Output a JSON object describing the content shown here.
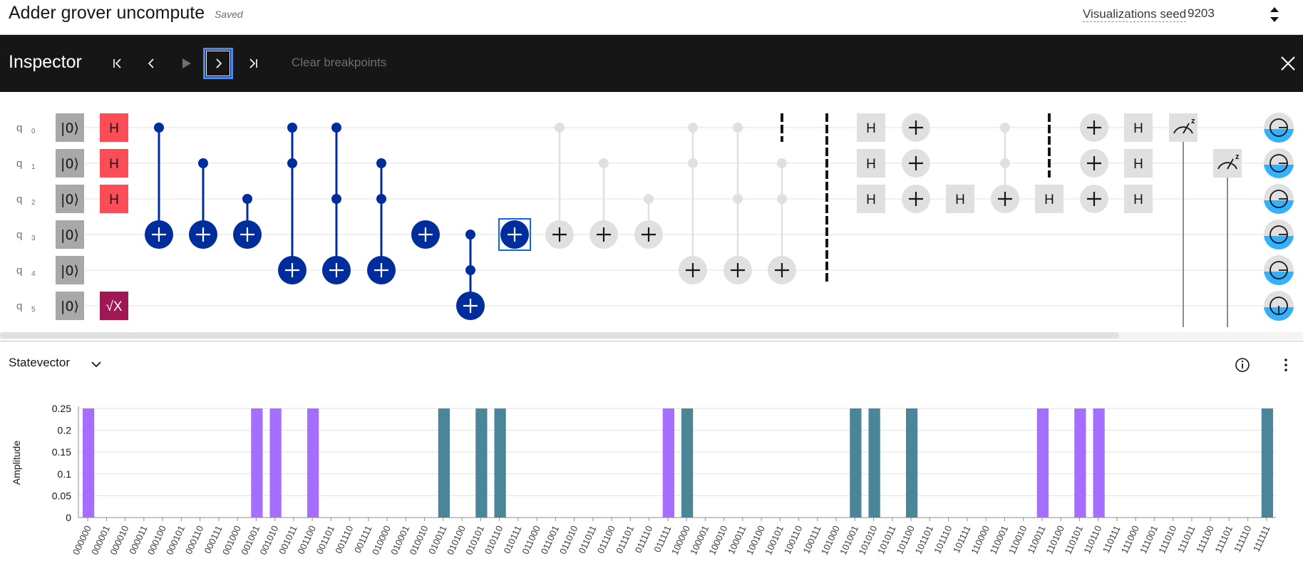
{
  "header": {
    "title": "Adder grover uncompute",
    "saved": "Saved",
    "seed_label": "Visualizations seed",
    "seed_value": "9203"
  },
  "inspector": {
    "title": "Inspector",
    "clear_breakpoints": "Clear breakpoints",
    "controls": [
      "step-to-start",
      "step-back",
      "play",
      "step-forward",
      "step-to-end"
    ],
    "active_control": "step-forward"
  },
  "circuit": {
    "qubits": [
      {
        "name": "q",
        "index": "0"
      },
      {
        "name": "q",
        "index": "1"
      },
      {
        "name": "q",
        "index": "2"
      },
      {
        "name": "q",
        "index": "3"
      },
      {
        "name": "q",
        "index": "4"
      },
      {
        "name": "q",
        "index": "5"
      }
    ],
    "init_label": "|0⟩",
    "gate_labels": {
      "h": "H",
      "sqrtx": "√X",
      "meas_basis": "z"
    },
    "colors": {
      "h_active": "#fa4d56",
      "sqrtx": "#9f1853",
      "ctrl_active": "#002d9c",
      "inactive": "#e0e0e0",
      "init": "#a8a8a8",
      "selection": "#0f62fe"
    }
  },
  "statevector": {
    "label": "Statevector",
    "colors": {
      "purple": "#a56eff",
      "teal": "#4a8599"
    }
  },
  "chart_data": {
    "type": "bar",
    "title": "",
    "xlabel": "",
    "ylabel": "Amplitude",
    "ylim": [
      0,
      0.25
    ],
    "yticks": [
      "0.25",
      "0.2",
      "0.15",
      "0.1",
      "0.05",
      "0"
    ],
    "categories": [
      "000000",
      "000001",
      "000010",
      "000011",
      "000100",
      "000101",
      "000110",
      "000111",
      "001000",
      "001001",
      "001010",
      "001011",
      "001100",
      "001101",
      "001110",
      "001111",
      "010000",
      "010001",
      "010010",
      "010011",
      "010100",
      "010101",
      "010110",
      "010111",
      "011000",
      "011001",
      "011010",
      "011011",
      "011100",
      "011101",
      "011110",
      "011111",
      "100000",
      "100001",
      "100010",
      "100011",
      "100100",
      "100101",
      "100110",
      "100111",
      "101000",
      "101001",
      "101010",
      "101011",
      "101100",
      "101101",
      "101110",
      "101111",
      "110000",
      "110001",
      "110010",
      "110011",
      "110100",
      "110101",
      "110110",
      "110111",
      "111000",
      "111001",
      "111010",
      "111011",
      "111100",
      "111101",
      "111110",
      "111111"
    ],
    "bars": [
      {
        "state": "000000",
        "value": 0.25,
        "color": "purple"
      },
      {
        "state": "001001",
        "value": 0.25,
        "color": "purple"
      },
      {
        "state": "001010",
        "value": 0.25,
        "color": "purple"
      },
      {
        "state": "001100",
        "value": 0.25,
        "color": "purple"
      },
      {
        "state": "010011",
        "value": 0.25,
        "color": "teal"
      },
      {
        "state": "010101",
        "value": 0.25,
        "color": "teal"
      },
      {
        "state": "010110",
        "value": 0.25,
        "color": "teal"
      },
      {
        "state": "011111",
        "value": 0.25,
        "color": "purple"
      },
      {
        "state": "100000",
        "value": 0.25,
        "color": "teal"
      },
      {
        "state": "101001",
        "value": 0.25,
        "color": "teal"
      },
      {
        "state": "101010",
        "value": 0.25,
        "color": "teal"
      },
      {
        "state": "101100",
        "value": 0.25,
        "color": "teal"
      },
      {
        "state": "110011",
        "value": 0.25,
        "color": "purple"
      },
      {
        "state": "110101",
        "value": 0.25,
        "color": "purple"
      },
      {
        "state": "110110",
        "value": 0.25,
        "color": "purple"
      },
      {
        "state": "111111",
        "value": 0.25,
        "color": "teal"
      }
    ]
  }
}
